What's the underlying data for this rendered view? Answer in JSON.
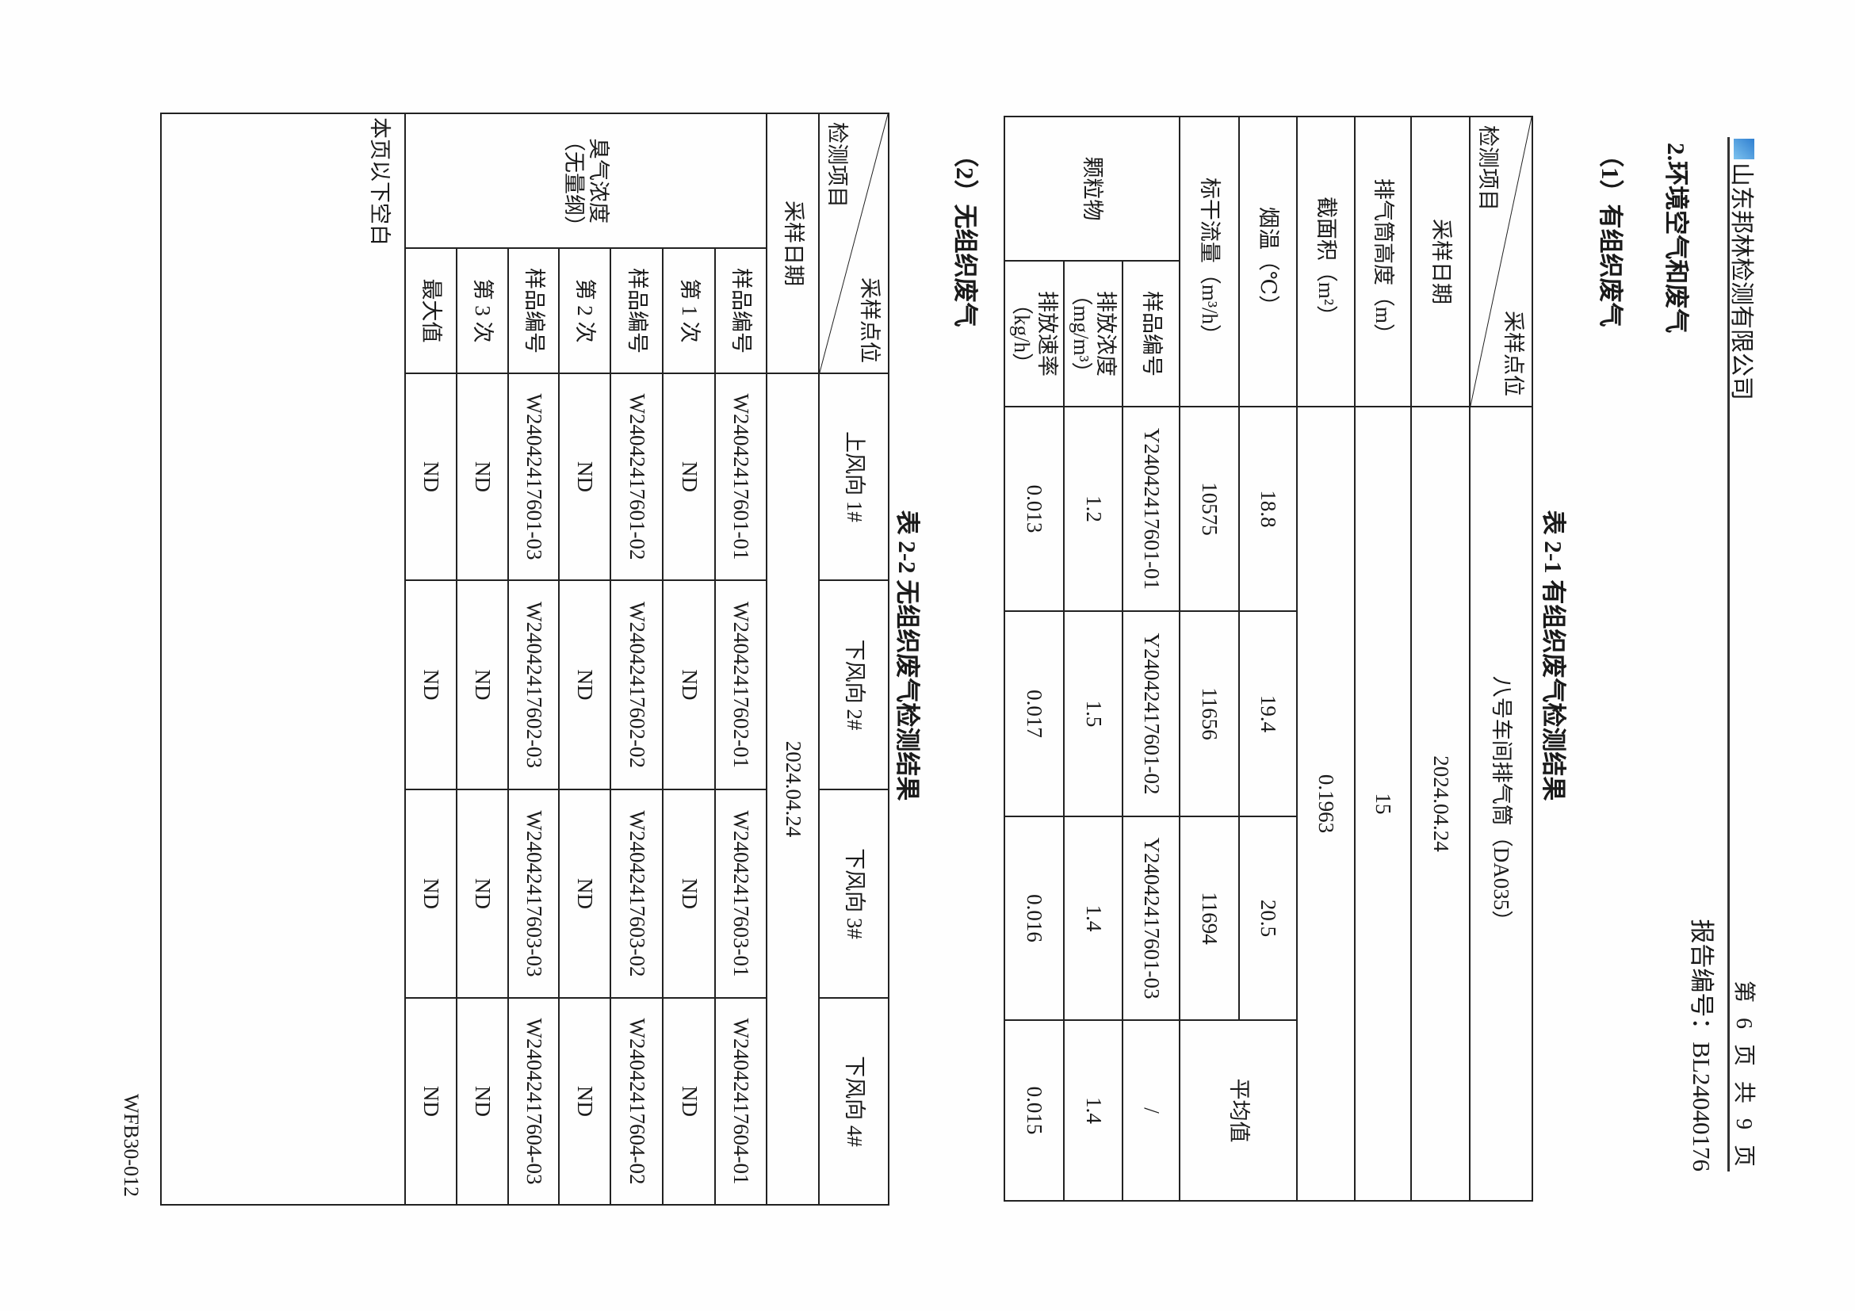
{
  "header": {
    "company": "山东邦林检测有限公司",
    "page_info": "第 6 页 共 9 页",
    "report_no": "报告编号：BL24040176",
    "logo_color": "#2f7fd0"
  },
  "section_title": "2.环境空气和废气",
  "sub1_title": "（1）有组织废气",
  "table1": {
    "title": "表 2-1  有组织废气检测结果",
    "diag_top": "采样点位",
    "diag_bottom": "检测项目",
    "location": "八号车间排气筒（DA035）",
    "date_label": "采样日期",
    "date": "2024.04.24",
    "height_label": "排气筒高度（m）",
    "height": "15",
    "area_label": "截面积（m²）",
    "area": "0.1963",
    "temp_label": "烟温（℃）",
    "temps": [
      "18.8",
      "19.4",
      "20.5"
    ],
    "average_label": "平均值",
    "flow_label": "标干流量（m³/h）",
    "flows": [
      "10575",
      "11656",
      "11694"
    ],
    "pm_label": "颗粒物",
    "sample_label": "样品编号",
    "samples": [
      "Y24042417601-01",
      "Y24042417601-02",
      "Y24042417601-03",
      "/"
    ],
    "conc_label": "排放浓度（mg/m³）",
    "concs": [
      "1.2",
      "1.5",
      "1.4",
      "1.4"
    ],
    "rate_label": "排放速率（kg/h）",
    "rates": [
      "0.013",
      "0.017",
      "0.016",
      "0.015"
    ]
  },
  "sub2_title": "（2）无组织废气",
  "table2": {
    "title": "表 2-2  无组织废气检测结果",
    "diag_top": "采样点位",
    "diag_bottom": "检测项目",
    "points": [
      "上风向 1#",
      "下风向 2#",
      "下风向 3#",
      "下风向 4#"
    ],
    "date_label": "采样日期",
    "date": "2024.04.24",
    "odor_label": "臭气浓度（无量纲）",
    "rows": [
      {
        "label": "样品编号",
        "values": [
          "W24042417601-01",
          "W24042417602-01",
          "W24042417603-01",
          "W24042417604-01"
        ]
      },
      {
        "label": "第 1 次",
        "values": [
          "ND",
          "ND",
          "ND",
          "ND"
        ]
      },
      {
        "label": "样品编号",
        "values": [
          "W24042417601-02",
          "W24042417602-02",
          "W24042417603-02",
          "W24042417604-02"
        ]
      },
      {
        "label": "第 2 次",
        "values": [
          "ND",
          "ND",
          "ND",
          "ND"
        ]
      },
      {
        "label": "样品编号",
        "values": [
          "W24042417601-03",
          "W24042417602-03",
          "W24042417603-03",
          "W24042417604-03"
        ]
      },
      {
        "label": "第 3 次",
        "values": [
          "ND",
          "ND",
          "ND",
          "ND"
        ]
      },
      {
        "label": "最大值",
        "values": [
          "ND",
          "ND",
          "ND",
          "ND"
        ]
      }
    ],
    "blank_note": "本页以下空白"
  },
  "footer": "WFB30-012"
}
